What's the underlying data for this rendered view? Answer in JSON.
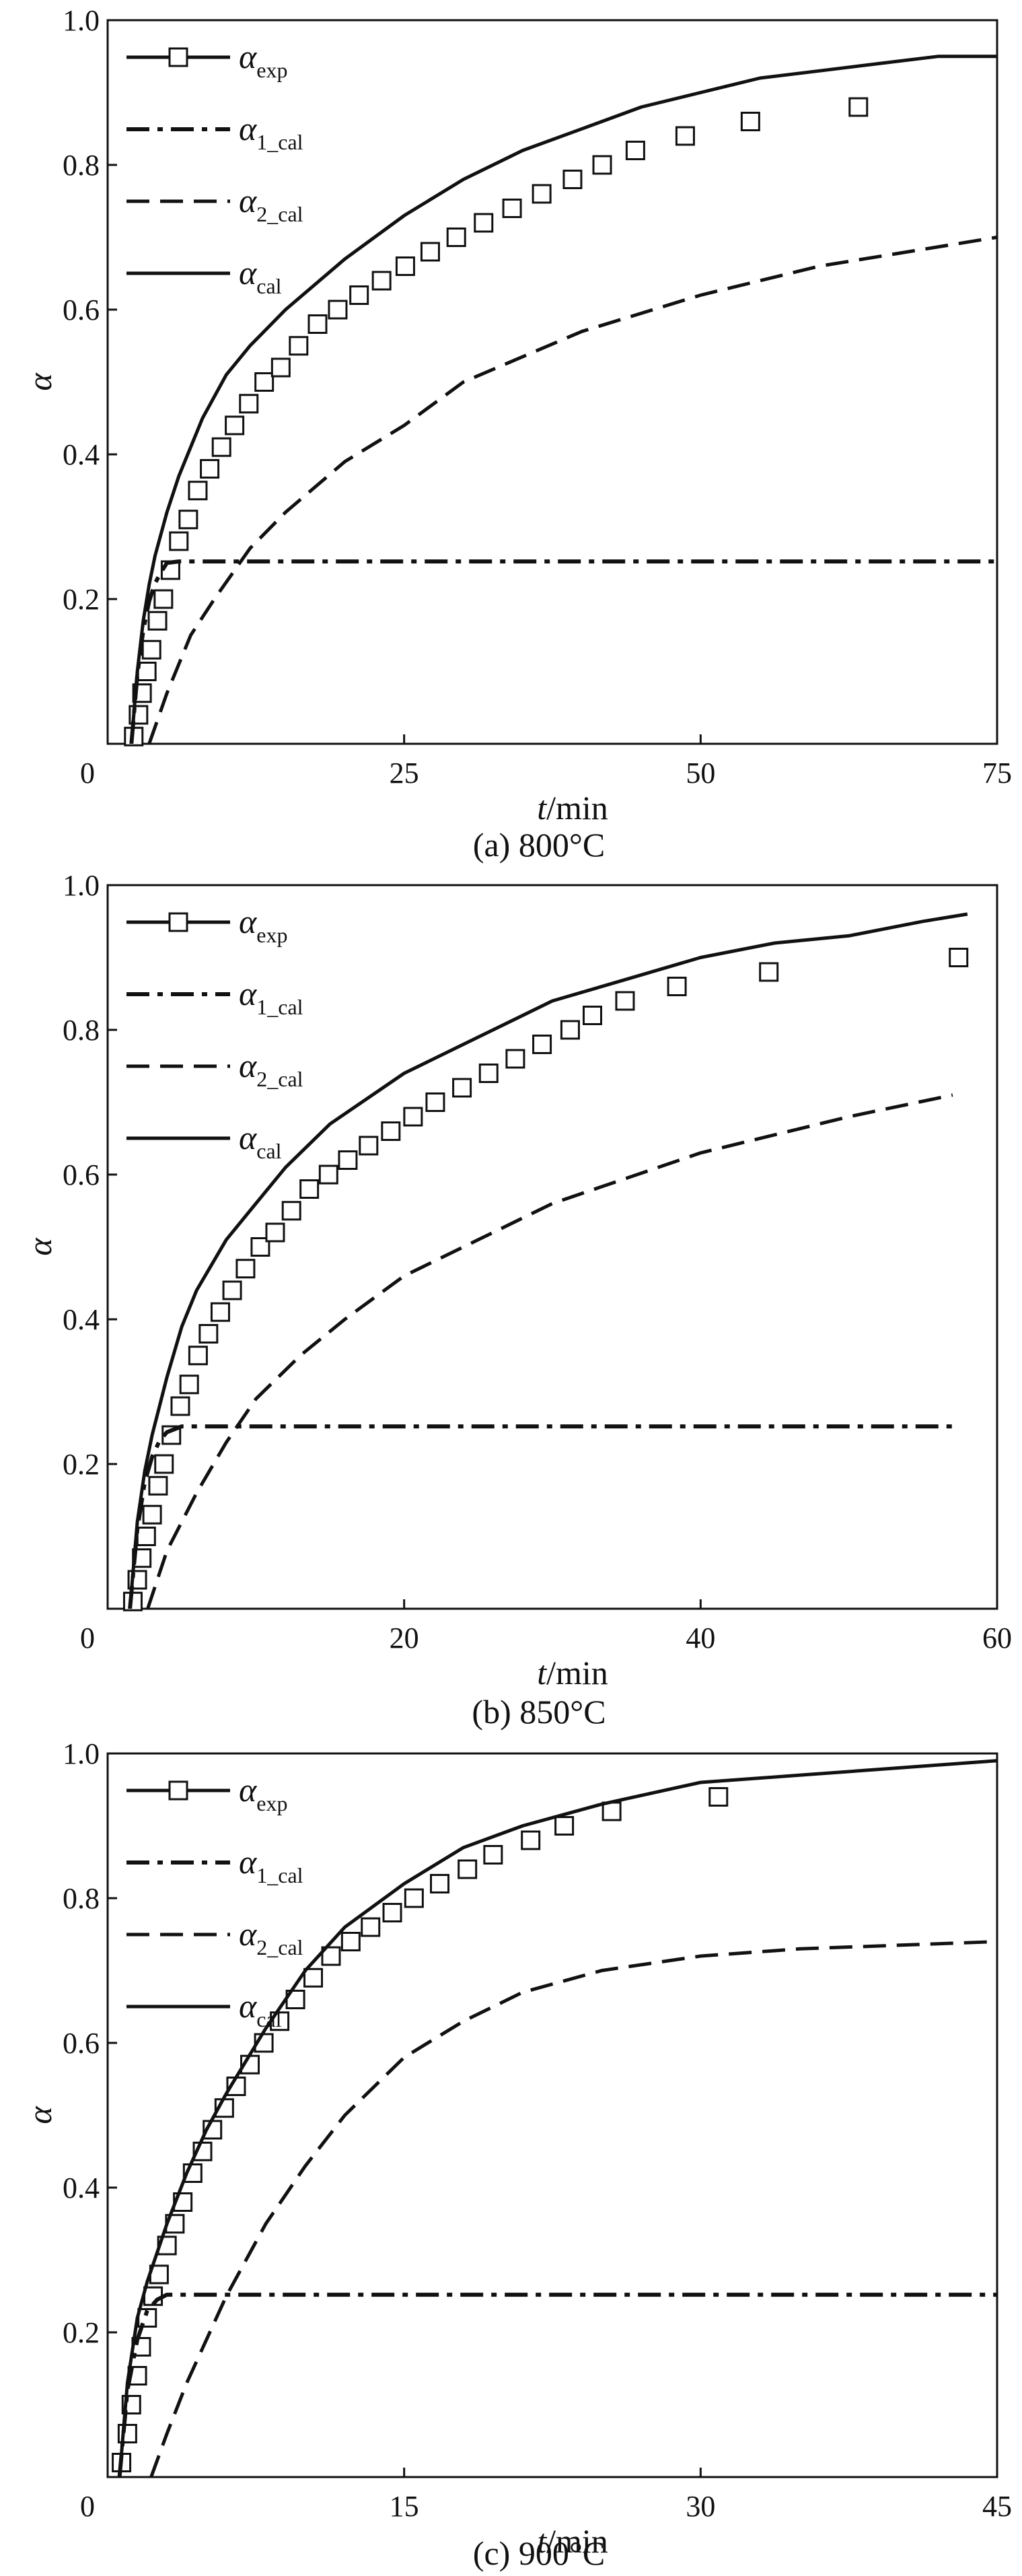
{
  "figure": {
    "panels": [
      {
        "caption": "(a) 800°C"
      },
      {
        "caption": "(b) 850°C"
      },
      {
        "caption": "(c) 900°C"
      }
    ]
  },
  "colors": {
    "ink": "#111111",
    "background": "#ffffff"
  },
  "chart_data": [
    {
      "type": "line",
      "caption": "(a) 800°C",
      "xlabel_italic": "t",
      "xlabel_unit": "/min",
      "ylabel": "α",
      "xlim": [
        0,
        75
      ],
      "ylim": [
        0,
        1.0
      ],
      "xticks": [
        0,
        25,
        50,
        75
      ],
      "xtick_labels": [
        "0",
        "25",
        "50",
        "75"
      ],
      "yticks": [
        0.2,
        0.4,
        0.6,
        0.8,
        1.0
      ],
      "ytick_labels": [
        "0.2",
        "0.4",
        "0.6",
        "0.8",
        "1.0"
      ],
      "legend_position": "top-left",
      "grid": false,
      "series": [
        {
          "name": "α_exp",
          "label_main": "α",
          "label_sub": "exp",
          "style": "square-markers",
          "x": [
            2.2,
            2.6,
            2.9,
            3.3,
            3.7,
            4.2,
            4.7,
            5.3,
            6.0,
            6.8,
            7.6,
            8.6,
            9.6,
            10.7,
            11.9,
            13.2,
            14.6,
            16.1,
            17.7,
            19.4,
            21.2,
            23.1,
            25.1,
            27.2,
            29.4,
            31.7,
            34.1,
            36.6,
            39.2,
            41.7,
            44.5,
            48.7,
            54.2,
            63.3
          ],
          "values": [
            0.01,
            0.04,
            0.07,
            0.1,
            0.13,
            0.17,
            0.2,
            0.24,
            0.28,
            0.31,
            0.35,
            0.38,
            0.41,
            0.44,
            0.47,
            0.5,
            0.52,
            0.55,
            0.58,
            0.6,
            0.62,
            0.64,
            0.66,
            0.68,
            0.7,
            0.72,
            0.74,
            0.76,
            0.78,
            0.8,
            0.82,
            0.84,
            0.86,
            0.88
          ]
        },
        {
          "name": "α_1_cal",
          "label_main": "α",
          "label_sub": "1_cal",
          "style": "dash-dot",
          "x": [
            2.0,
            2.5,
            3.0,
            3.5,
            4.0,
            4.5,
            5.0,
            6.0,
            8.0,
            10.0,
            20.0,
            40.0,
            60.0,
            75.0
          ],
          "values": [
            0.0,
            0.095,
            0.157,
            0.197,
            0.222,
            0.237,
            0.25,
            0.252,
            0.252,
            0.252,
            0.252,
            0.252,
            0.252,
            0.252
          ]
        },
        {
          "name": "α_2_cal",
          "label_main": "α",
          "label_sub": "2_cal",
          "style": "dashed",
          "x": [
            3.5,
            5,
            7,
            9,
            12,
            15,
            20,
            25,
            30,
            40,
            50,
            60,
            75
          ],
          "values": [
            0.0,
            0.07,
            0.15,
            0.2,
            0.27,
            0.32,
            0.39,
            0.44,
            0.5,
            0.57,
            0.62,
            0.66,
            0.7
          ]
        },
        {
          "name": "α_cal",
          "label_main": "α",
          "label_sub": "cal",
          "style": "solid",
          "x": [
            2.0,
            2.5,
            3.0,
            3.5,
            4.0,
            5.0,
            6.0,
            8.0,
            10.0,
            12.0,
            15.0,
            20.0,
            25.0,
            30.0,
            35.0,
            40.0,
            45.0,
            50.0,
            55.0,
            60.0,
            65.0,
            70.0,
            75.0
          ],
          "values": [
            0.0,
            0.1,
            0.17,
            0.22,
            0.26,
            0.32,
            0.37,
            0.45,
            0.51,
            0.55,
            0.6,
            0.67,
            0.73,
            0.78,
            0.82,
            0.85,
            0.88,
            0.9,
            0.92,
            0.93,
            0.94,
            0.95,
            0.95
          ]
        }
      ]
    },
    {
      "type": "line",
      "caption": "(b) 850°C",
      "xlabel_italic": "t",
      "xlabel_unit": "/min",
      "ylabel": "α",
      "xlim": [
        0,
        60
      ],
      "ylim": [
        0,
        1.0
      ],
      "xticks": [
        0,
        20,
        40,
        60
      ],
      "xtick_labels": [
        "0",
        "20",
        "40",
        "60"
      ],
      "yticks": [
        0.2,
        0.4,
        0.6,
        0.8,
        1.0
      ],
      "ytick_labels": [
        "0.2",
        "0.4",
        "0.6",
        "0.8",
        "1.0"
      ],
      "legend_position": "top-left",
      "grid": false,
      "series": [
        {
          "name": "α_exp",
          "label_main": "α",
          "label_sub": "exp",
          "style": "square-markers",
          "x": [
            1.7,
            2.0,
            2.3,
            2.6,
            3.0,
            3.4,
            3.8,
            4.3,
            4.9,
            5.5,
            6.1,
            6.8,
            7.6,
            8.4,
            9.3,
            10.3,
            11.3,
            12.4,
            13.6,
            14.9,
            16.2,
            17.6,
            19.1,
            20.6,
            22.1,
            23.9,
            25.7,
            27.5,
            29.3,
            31.2,
            32.7,
            34.9,
            38.4,
            44.6,
            57.4
          ],
          "values": [
            0.01,
            0.04,
            0.07,
            0.1,
            0.13,
            0.17,
            0.2,
            0.24,
            0.28,
            0.31,
            0.35,
            0.38,
            0.41,
            0.44,
            0.47,
            0.5,
            0.52,
            0.55,
            0.58,
            0.6,
            0.62,
            0.64,
            0.66,
            0.68,
            0.7,
            0.72,
            0.74,
            0.76,
            0.78,
            0.8,
            0.82,
            0.84,
            0.86,
            0.88,
            0.9
          ]
        },
        {
          "name": "α_1_cal",
          "label_main": "α",
          "label_sub": "1_cal",
          "style": "dash-dot",
          "x": [
            1.5,
            2.0,
            2.5,
            3.0,
            3.5,
            4.0,
            5.0,
            8.0,
            20.0,
            40.0,
            57.0
          ],
          "values": [
            0.0,
            0.11,
            0.175,
            0.21,
            0.232,
            0.244,
            0.252,
            0.252,
            0.252,
            0.252,
            0.252
          ]
        },
        {
          "name": "α_2_cal",
          "label_main": "α",
          "label_sub": "2_cal",
          "style": "dashed",
          "x": [
            2.7,
            4,
            6,
            8,
            10,
            13,
            16,
            20,
            25,
            30,
            40,
            50,
            57
          ],
          "values": [
            0.0,
            0.08,
            0.16,
            0.23,
            0.29,
            0.35,
            0.4,
            0.46,
            0.51,
            0.56,
            0.63,
            0.68,
            0.71
          ]
        },
        {
          "name": "α_cal",
          "label_main": "α",
          "label_sub": "cal",
          "style": "solid",
          "x": [
            1.5,
            2.0,
            2.5,
            3.0,
            3.5,
            4.0,
            5.0,
            6.0,
            8.0,
            10.0,
            12.0,
            15.0,
            20.0,
            25.0,
            30.0,
            35.0,
            40.0,
            45.0,
            50.0,
            55.0,
            58.0
          ],
          "values": [
            0.0,
            0.12,
            0.19,
            0.24,
            0.28,
            0.32,
            0.39,
            0.44,
            0.51,
            0.56,
            0.61,
            0.67,
            0.74,
            0.79,
            0.84,
            0.87,
            0.9,
            0.92,
            0.93,
            0.95,
            0.96
          ]
        }
      ]
    },
    {
      "type": "line",
      "caption": "(c) 900°C",
      "xlabel_italic": "t",
      "xlabel_unit": "/min",
      "ylabel": "α",
      "xlim": [
        0,
        45
      ],
      "ylim": [
        0,
        1.0
      ],
      "xticks": [
        0,
        15,
        30,
        45
      ],
      "xtick_labels": [
        "0",
        "15",
        "30",
        "45"
      ],
      "yticks": [
        0.2,
        0.4,
        0.6,
        0.8,
        1.0
      ],
      "ytick_labels": [
        "0.2",
        "0.4",
        "0.6",
        "0.8",
        "1.0"
      ],
      "legend_position": "top-left",
      "grid": false,
      "series": [
        {
          "name": "α_exp",
          "label_main": "α",
          "label_sub": "exp",
          "style": "square-markers",
          "x": [
            0.7,
            1.0,
            1.2,
            1.5,
            1.7,
            2.0,
            2.3,
            2.6,
            3.0,
            3.4,
            3.8,
            4.3,
            4.8,
            5.3,
            5.9,
            6.5,
            7.2,
            7.9,
            8.7,
            9.5,
            10.4,
            11.3,
            12.3,
            13.3,
            14.4,
            15.5,
            16.8,
            18.2,
            19.5,
            21.4,
            23.1,
            25.5,
            30.9
          ],
          "values": [
            0.02,
            0.06,
            0.1,
            0.14,
            0.18,
            0.22,
            0.25,
            0.28,
            0.32,
            0.35,
            0.38,
            0.42,
            0.45,
            0.48,
            0.51,
            0.54,
            0.57,
            0.6,
            0.63,
            0.66,
            0.69,
            0.72,
            0.74,
            0.76,
            0.78,
            0.8,
            0.82,
            0.84,
            0.86,
            0.88,
            0.9,
            0.92,
            0.94
          ]
        },
        {
          "name": "α_1_cal",
          "label_main": "α",
          "label_sub": "1_cal",
          "style": "dash-dot",
          "x": [
            0.6,
            1.0,
            1.5,
            2.0,
            2.5,
            3.0,
            5.0,
            10.0,
            20.0,
            30.0,
            45.0
          ],
          "values": [
            0.0,
            0.12,
            0.19,
            0.23,
            0.245,
            0.252,
            0.252,
            0.252,
            0.252,
            0.252,
            0.252
          ]
        },
        {
          "name": "α_2_cal",
          "label_main": "α",
          "label_sub": "2_cal",
          "style": "dashed",
          "x": [
            2.2,
            3,
            4,
            5,
            6,
            8,
            10,
            12,
            15,
            18,
            21,
            25,
            30,
            35,
            40,
            45
          ],
          "values": [
            0.0,
            0.06,
            0.13,
            0.19,
            0.25,
            0.35,
            0.43,
            0.5,
            0.58,
            0.63,
            0.67,
            0.7,
            0.72,
            0.73,
            0.735,
            0.74
          ]
        },
        {
          "name": "α_cal",
          "label_main": "α",
          "label_sub": "cal",
          "style": "solid",
          "x": [
            0.6,
            1.0,
            1.5,
            2.0,
            3.0,
            4.0,
            5.0,
            6.0,
            8.0,
            10.0,
            12.0,
            15.0,
            18.0,
            21.0,
            25.0,
            30.0,
            35.0,
            40.0,
            45.0
          ],
          "values": [
            0.0,
            0.13,
            0.22,
            0.27,
            0.35,
            0.42,
            0.48,
            0.53,
            0.62,
            0.7,
            0.76,
            0.82,
            0.87,
            0.9,
            0.93,
            0.96,
            0.97,
            0.98,
            0.99
          ]
        }
      ]
    }
  ]
}
